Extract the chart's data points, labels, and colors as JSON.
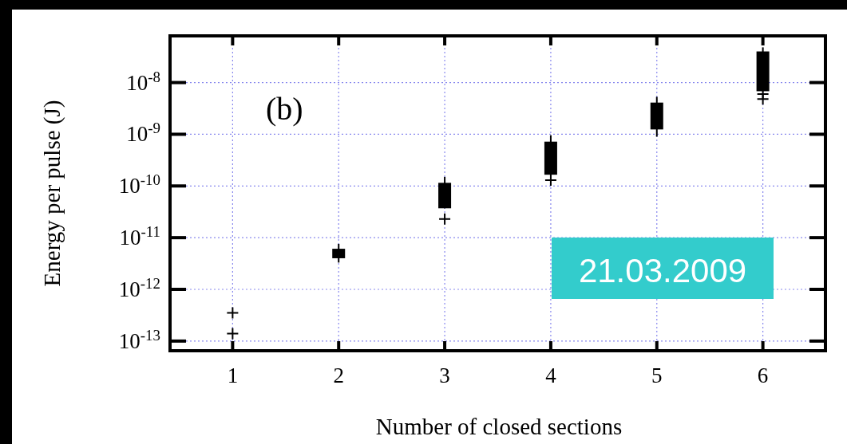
{
  "chart_data": {
    "type": "box",
    "xlabel": "Number of closed sections",
    "ylabel": "Energy per pulse (J)",
    "categories": [
      "1",
      "2",
      "3",
      "4",
      "5",
      "6"
    ],
    "color": "#000000",
    "boxes": [
      null,
      {
        "low": 3.3e-12,
        "q1": 4e-12,
        "q3": 6.1e-12,
        "high": 7.6e-12
      },
      {
        "low": 3.7e-11,
        "q1": 3.7e-11,
        "q3": 1.15e-10,
        "high": 1.5e-10
      },
      {
        "low": 1.65e-10,
        "q1": 1.65e-10,
        "q3": 7.2e-10,
        "high": 9.6e-10
      },
      {
        "low": 9e-10,
        "q1": 1.24e-09,
        "q3": 4.1e-09,
        "high": 5.3e-09
      },
      {
        "low": 6.8e-09,
        "q1": 6.8e-09,
        "q3": 4e-08,
        "high": 4.8e-08
      }
    ],
    "series": [
      {
        "type": "scatter",
        "marker": "cross",
        "color": "#000000",
        "x": [
          "1",
          "1",
          "3",
          "4",
          "6",
          "6"
        ],
        "values": [
          3.5e-13,
          1.4e-13,
          2.3e-11,
          1.3e-10,
          6e-09,
          4.8e-09
        ]
      }
    ],
    "log": true,
    "ylim": [
      6.5e-14,
      8e-08
    ],
    "yticks": [
      {
        "value": 1e-13,
        "label": "10$^{-13}$"
      },
      {
        "value": 1e-12,
        "label": "10$^{-12}$"
      },
      {
        "value": 1e-11,
        "label": "10$^{-11}$"
      },
      {
        "value": 1e-10,
        "label": "10$^{-10}$"
      },
      {
        "value": 1e-09,
        "label": "10$^{-9}$"
      },
      {
        "value": 1e-08,
        "label": "10$^{-8}$"
      }
    ],
    "grid": true,
    "annotations": [
      "(b)",
      "21.03.2009"
    ]
  }
}
